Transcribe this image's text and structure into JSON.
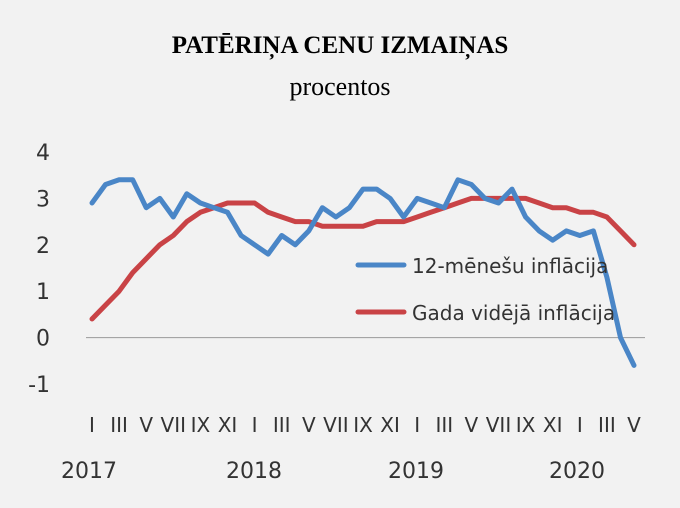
{
  "chart_data": {
    "type": "line",
    "title": "PATĒRIŅA CENU IZMAIŅAS",
    "subtitle": "procentos",
    "ylim": [
      -1,
      4
    ],
    "yticks": [
      4,
      3,
      2,
      1,
      0,
      -1
    ],
    "ytick_labels": [
      "4",
      "3",
      "2",
      "1",
      "0",
      "-1"
    ],
    "month_tick_labels": [
      "I",
      "III",
      "V",
      "VII",
      "IX",
      "XI",
      "I",
      "III",
      "V",
      "VII",
      "IX",
      "XI",
      "I",
      "III",
      "V",
      "VII",
      "IX",
      "XI",
      "I",
      "III",
      "V"
    ],
    "year_labels": [
      "2017",
      "2018",
      "2019",
      "2020"
    ],
    "x": [
      "2017-01",
      "2017-02",
      "2017-03",
      "2017-04",
      "2017-05",
      "2017-06",
      "2017-07",
      "2017-08",
      "2017-09",
      "2017-10",
      "2017-11",
      "2017-12",
      "2018-01",
      "2018-02",
      "2018-03",
      "2018-04",
      "2018-05",
      "2018-06",
      "2018-07",
      "2018-08",
      "2018-09",
      "2018-10",
      "2018-11",
      "2018-12",
      "2019-01",
      "2019-02",
      "2019-03",
      "2019-04",
      "2019-05",
      "2019-06",
      "2019-07",
      "2019-08",
      "2019-09",
      "2019-10",
      "2019-11",
      "2019-12",
      "2020-01",
      "2020-02",
      "2020-03",
      "2020-04",
      "2020-05"
    ],
    "series": [
      {
        "name": "12-mēnešu inflācija",
        "color": "#4a86c7",
        "values": [
          2.9,
          3.3,
          3.4,
          3.4,
          2.8,
          3.0,
          2.6,
          3.1,
          2.9,
          2.8,
          2.7,
          2.2,
          2.0,
          1.8,
          2.2,
          2.0,
          2.3,
          2.8,
          2.6,
          2.8,
          3.2,
          3.2,
          3.0,
          2.6,
          3.0,
          2.9,
          2.8,
          3.4,
          3.3,
          3.0,
          2.9,
          3.2,
          2.6,
          2.3,
          2.1,
          2.3,
          2.2,
          2.3,
          1.3,
          0.0,
          -0.6
        ]
      },
      {
        "name": "Gada vidējā inflācija",
        "color": "#c94346",
        "values": [
          0.4,
          0.7,
          1.0,
          1.4,
          1.7,
          2.0,
          2.2,
          2.5,
          2.7,
          2.8,
          2.9,
          2.9,
          2.9,
          2.7,
          2.6,
          2.5,
          2.5,
          2.4,
          2.4,
          2.4,
          2.4,
          2.5,
          2.5,
          2.5,
          2.6,
          2.7,
          2.8,
          2.9,
          3.0,
          3.0,
          3.0,
          3.0,
          3.0,
          2.9,
          2.8,
          2.8,
          2.7,
          2.7,
          2.6,
          2.3,
          2.0
        ]
      }
    ],
    "legend_position": "right",
    "grid": false
  }
}
